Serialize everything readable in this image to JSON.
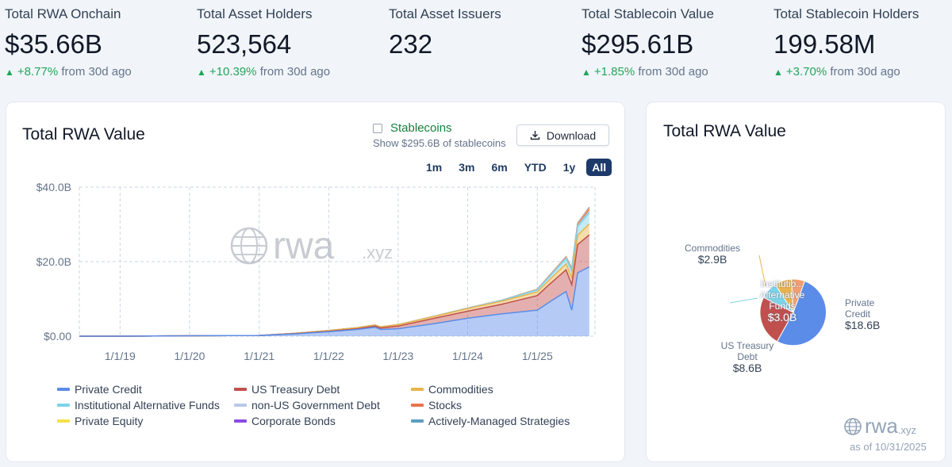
{
  "stats": [
    {
      "label": "Total RWA Onchain",
      "value": "$35.66B",
      "change": "+8.77%",
      "suffix": "from 30d ago"
    },
    {
      "label": "Total Asset Holders",
      "value": "523,564",
      "change": "+10.39%",
      "suffix": "from 30d ago"
    },
    {
      "label": "Total Asset Issuers",
      "value": "232",
      "change": "",
      "suffix": ""
    },
    {
      "label": "Total Stablecoin Value",
      "value": "$295.61B",
      "change": "+1.85%",
      "suffix": "from 30d ago"
    },
    {
      "label": "Total Stablecoin Holders",
      "value": "199.58M",
      "change": "+3.70%",
      "suffix": "from 30d ago"
    }
  ],
  "main": {
    "title": "Total RWA Value",
    "stablecoins_label": "Stablecoins",
    "stablecoins_sub": "Show $295.6B of stablecoins",
    "download_label": "Download",
    "ranges": [
      "1m",
      "3m",
      "6m",
      "YTD",
      "1y",
      "All"
    ],
    "active_range": "All",
    "watermark": "rwa",
    "watermark_suffix": ".xyz"
  },
  "chart_data": {
    "type": "area",
    "x_ticks": [
      "1/1/19",
      "1/1/20",
      "1/1/21",
      "1/1/22",
      "1/1/23",
      "1/1/24",
      "1/1/25"
    ],
    "y_ticks": [
      "$0.00",
      "$20.0B",
      "$40.0B"
    ],
    "ylim": [
      0,
      40
    ],
    "x": [
      "2018-06",
      "2019-01",
      "2020-01",
      "2021-01",
      "2021-07",
      "2022-01",
      "2022-06",
      "2022-09",
      "2022-10",
      "2023-01",
      "2023-07",
      "2024-01",
      "2024-07",
      "2025-01",
      "2025-03",
      "2025-06",
      "2025-07",
      "2025-08",
      "2025-10"
    ],
    "series": [
      {
        "name": "Private Credit",
        "color": "#5b8ce8",
        "values": [
          0,
          0,
          0.1,
          0.2,
          0.6,
          1.2,
          1.8,
          2.4,
          1.8,
          2.0,
          3.3,
          4.8,
          6.0,
          7.0,
          9.0,
          12.0,
          7.0,
          17.0,
          18.6
        ]
      },
      {
        "name": "US Treasury Debt",
        "color": "#c0504d",
        "values": [
          0,
          0,
          0,
          0,
          0.05,
          0.1,
          0.2,
          0.3,
          0.4,
          0.7,
          1.4,
          1.9,
          2.6,
          3.9,
          4.7,
          5.8,
          6.8,
          7.6,
          8.6
        ]
      },
      {
        "name": "Commodities",
        "color": "#e9b44c",
        "values": [
          0,
          0,
          0,
          0,
          0.1,
          0.2,
          0.3,
          0.3,
          0.3,
          0.4,
          0.5,
          0.7,
          0.8,
          1.0,
          1.2,
          1.6,
          1.9,
          2.5,
          2.9
        ]
      },
      {
        "name": "Institutional Alternative Funds",
        "color": "#7dd3e8",
        "values": [
          0,
          0,
          0,
          0,
          0,
          0,
          0,
          0,
          0,
          0,
          0.05,
          0.1,
          0.2,
          0.5,
          0.8,
          1.4,
          1.8,
          2.3,
          3.0
        ]
      },
      {
        "name": "non-US Government Debt",
        "color": "#b9c8e8",
        "values": [
          0,
          0,
          0,
          0,
          0,
          0,
          0,
          0,
          0,
          0,
          0,
          0.02,
          0.05,
          0.1,
          0.15,
          0.2,
          0.25,
          0.3,
          0.4
        ]
      },
      {
        "name": "Stocks",
        "color": "#e8744c",
        "values": [
          0,
          0,
          0,
          0,
          0,
          0,
          0,
          0,
          0,
          0,
          0,
          0.01,
          0.02,
          0.05,
          0.1,
          0.15,
          0.2,
          0.3,
          0.5
        ]
      },
      {
        "name": "Private Equity",
        "color": "#f5e04c",
        "values": [
          0,
          0,
          0,
          0,
          0,
          0,
          0,
          0,
          0,
          0,
          0,
          0,
          0.01,
          0.02,
          0.05,
          0.1,
          0.15,
          0.2,
          0.3
        ]
      },
      {
        "name": "Corporate Bonds",
        "color": "#8a4ce0",
        "values": [
          0,
          0,
          0,
          0,
          0,
          0,
          0,
          0,
          0,
          0,
          0,
          0,
          0,
          0.01,
          0.02,
          0.03,
          0.05,
          0.1,
          0.15
        ]
      },
      {
        "name": "Actively-Managed Strategies",
        "color": "#5a9fc0",
        "values": [
          0,
          0,
          0,
          0,
          0,
          0,
          0,
          0,
          0,
          0,
          0,
          0,
          0,
          0.01,
          0.02,
          0.03,
          0.04,
          0.05,
          0.1
        ]
      }
    ]
  },
  "pie": {
    "title": "Total RWA Value",
    "slices": [
      {
        "name": "Private Credit",
        "value": 18.6,
        "value_label": "$18.6B",
        "label": "Private Credit",
        "color": "#5b8ce8"
      },
      {
        "name": "US Treasury Debt",
        "value": 8.6,
        "value_label": "$8.6B",
        "label": "US Treasury Debt",
        "color": "#c0504d"
      },
      {
        "name": "Institutional Alternative Funds",
        "value": 3.0,
        "value_label": "$3.0B",
        "label": "Institutio... Alternative Funds",
        "color": "#7dd3e8"
      },
      {
        "name": "Commodities",
        "value": 2.9,
        "value_label": "$2.9B",
        "label": "Commodities",
        "color": "#e9b44c"
      },
      {
        "name": "Other",
        "value": 2.3,
        "value_label": "",
        "label": "",
        "color": "#f0a070"
      }
    ],
    "watermark": "rwa",
    "watermark_suffix": ".xyz",
    "as_of": "as of 10/31/2025"
  }
}
